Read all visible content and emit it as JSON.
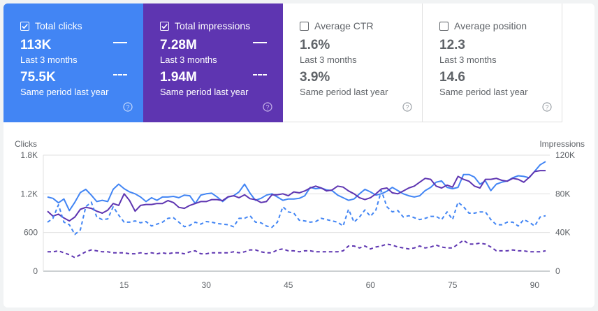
{
  "cards": [
    {
      "label": "Total clicks",
      "checked": true,
      "value": "113K",
      "period": "Last 3 months",
      "prev_value": "75.5K",
      "prev_period": "Same period last year"
    },
    {
      "label": "Total impressions",
      "checked": true,
      "value": "7.28M",
      "period": "Last 3 months",
      "prev_value": "1.94M",
      "prev_period": "Same period last year"
    },
    {
      "label": "Average CTR",
      "checked": false,
      "value": "1.6%",
      "period": "Last 3 months",
      "prev_value": "3.9%",
      "prev_period": "Same period last year"
    },
    {
      "label": "Average position",
      "checked": false,
      "value": "12.3",
      "period": "Last 3 months",
      "prev_value": "14.6",
      "prev_period": "Same period last year"
    }
  ],
  "colors": {
    "clicks": "#4285f4",
    "impressions": "#5e35b1",
    "grid": "#e0e0e0"
  },
  "chart_data": {
    "type": "line",
    "ylabel_left": "Clicks",
    "ylabel_right": "Impressions",
    "yticks_left": [
      "0",
      "600",
      "1.2K",
      "1.8K"
    ],
    "yticks_right": [
      "0",
      "40K",
      "80K",
      "120K"
    ],
    "ylim_left": [
      0,
      1800
    ],
    "ylim_right": [
      0,
      120000
    ],
    "xticks": [
      15,
      30,
      45,
      60,
      75,
      90
    ],
    "xlim": [
      1,
      92
    ],
    "series": [
      {
        "key": "clicks_current",
        "axis": "left",
        "style": "solid",
        "color": "#4285f4",
        "values": [
          1150,
          1130,
          1060,
          1120,
          940,
          1070,
          1220,
          1270,
          1180,
          1080,
          1100,
          1080,
          1270,
          1350,
          1280,
          1230,
          1200,
          1150,
          1080,
          1140,
          1100,
          1150,
          1150,
          1160,
          1140,
          1180,
          1170,
          1050,
          1180,
          1200,
          1210,
          1150,
          1080,
          1150,
          1170,
          1230,
          1350,
          1210,
          1100,
          1130,
          1180,
          1200,
          1150,
          1100,
          1120,
          1120,
          1130,
          1170,
          1300,
          1280,
          1290,
          1260,
          1250,
          1180,
          1140,
          1100,
          1120,
          1200,
          1270,
          1230,
          1180,
          1200,
          1240,
          1300,
          1250,
          1200,
          1170,
          1150,
          1170,
          1250,
          1300,
          1380,
          1400,
          1300,
          1280,
          1300,
          1500,
          1500,
          1460,
          1350,
          1400,
          1250,
          1350,
          1380,
          1400,
          1450,
          1480,
          1470,
          1450,
          1550,
          1650,
          1700
        ]
      },
      {
        "key": "impressions_current",
        "axis": "right",
        "style": "solid",
        "color": "#5e35b1",
        "values": [
          62000,
          57000,
          59000,
          55000,
          52000,
          56000,
          64000,
          66000,
          65000,
          62000,
          60000,
          63000,
          70000,
          68000,
          80000,
          73000,
          62000,
          68000,
          69000,
          69000,
          70000,
          70000,
          73000,
          71000,
          66000,
          65000,
          68000,
          70000,
          72000,
          72000,
          74000,
          74000,
          73000,
          77000,
          78000,
          76000,
          79000,
          75000,
          74000,
          71000,
          72000,
          79000,
          79000,
          80000,
          78000,
          82000,
          81000,
          83000,
          86000,
          88000,
          86000,
          83000,
          84000,
          88000,
          87000,
          83000,
          80000,
          76000,
          74000,
          76000,
          80000,
          85000,
          86000,
          81000,
          80000,
          83000,
          86000,
          88000,
          92000,
          96000,
          95000,
          88000,
          86000,
          89000,
          87000,
          98000,
          95000,
          93000,
          88000,
          86000,
          95000,
          95000,
          96000,
          94000,
          93000,
          96000,
          95000,
          92000,
          97000,
          103000,
          104000,
          104000
        ]
      },
      {
        "key": "clicks_previous",
        "axis": "left",
        "style": "dashed",
        "color": "#4285f4",
        "values": [
          760,
          820,
          1030,
          760,
          720,
          570,
          640,
          1000,
          1070,
          840,
          800,
          810,
          1000,
          870,
          760,
          760,
          780,
          750,
          770,
          700,
          730,
          760,
          820,
          830,
          760,
          690,
          710,
          760,
          730,
          770,
          760,
          740,
          730,
          720,
          690,
          820,
          820,
          860,
          760,
          750,
          700,
          680,
          760,
          1000,
          920,
          900,
          790,
          780,
          760,
          770,
          820,
          800,
          780,
          760,
          700,
          960,
          760,
          840,
          950,
          850,
          950,
          1250,
          1000,
          920,
          940,
          840,
          860,
          830,
          800,
          820,
          850,
          850,
          800,
          920,
          800,
          1070,
          1000,
          900,
          900,
          920,
          920,
          800,
          720,
          720,
          760,
          760,
          700,
          800,
          760,
          700,
          840,
          860
        ]
      },
      {
        "key": "impressions_previous",
        "axis": "right",
        "style": "dashed",
        "color": "#5e35b1",
        "values": [
          20000,
          20000,
          21000,
          19000,
          17000,
          14000,
          17000,
          20000,
          22000,
          21000,
          20000,
          20000,
          19000,
          19000,
          19000,
          18000,
          18000,
          19000,
          18000,
          19000,
          18000,
          19000,
          18000,
          19000,
          19000,
          18000,
          20000,
          21000,
          18000,
          18000,
          19000,
          19000,
          19000,
          19000,
          20000,
          19000,
          20000,
          22000,
          22000,
          20000,
          19000,
          19000,
          22000,
          23000,
          21000,
          21000,
          20000,
          21000,
          21000,
          20000,
          20000,
          20000,
          20000,
          20000,
          21000,
          26000,
          26000,
          24000,
          26000,
          23000,
          25000,
          26000,
          28000,
          27000,
          25000,
          24000,
          23000,
          24000,
          26000,
          24000,
          25000,
          27000,
          25000,
          24000,
          24000,
          28000,
          32000,
          28000,
          28000,
          29000,
          28000,
          25000,
          21000,
          21000,
          21000,
          22000,
          21000,
          21000,
          20000,
          20000,
          20000,
          21000
        ]
      }
    ]
  }
}
